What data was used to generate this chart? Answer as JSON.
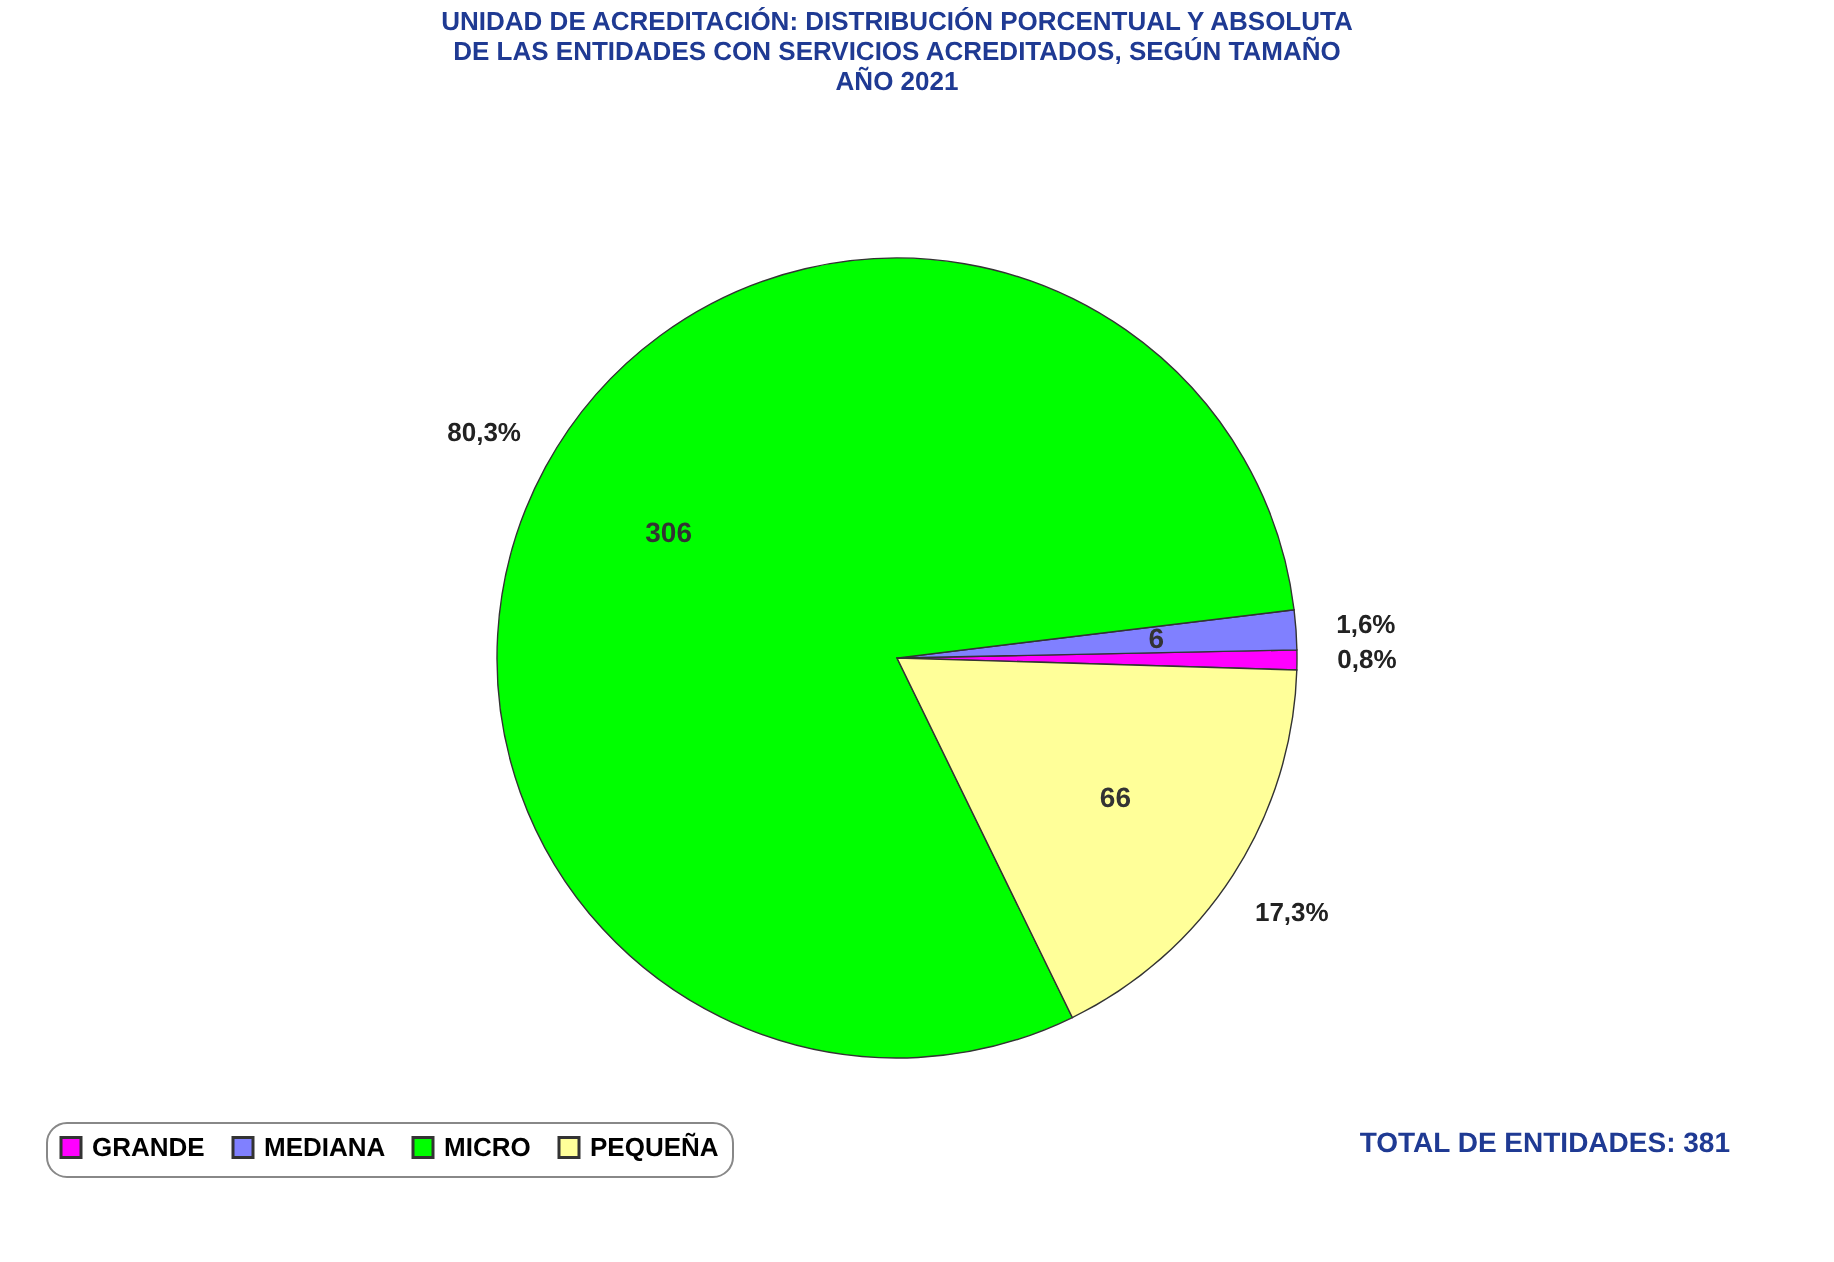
{
  "chart_data": {
    "type": "pie",
    "title": "UNIDAD DE ACREDITACIÓN: DISTRIBUCIÓN PORCENTUAL Y ABSOLUTA\nDE LAS ENTIDADES CON SERVICIOS ACREDITADOS, SEGÚN TAMAÑO\nAÑO 2021",
    "categories": [
      "GRANDE",
      "MEDIANA",
      "MICRO",
      "PEQUEÑA"
    ],
    "values": [
      0.8,
      1.6,
      80.3,
      17.3
    ],
    "colors": [
      "#ff00ff",
      "#8080ff",
      "#00ff00",
      "#ffff99"
    ],
    "value_labels": [
      "0,8%",
      "1,6%",
      "80,3%",
      "17,3%"
    ],
    "annotations": [
      {
        "text": "6",
        "x": "MEDIANA"
      },
      {
        "text": "306",
        "x": "MICRO"
      },
      {
        "text": "66",
        "x": "PEQUEÑA"
      },
      "TOTAL DE ENTIDADES: 381"
    ],
    "legend": "bottom left"
  }
}
